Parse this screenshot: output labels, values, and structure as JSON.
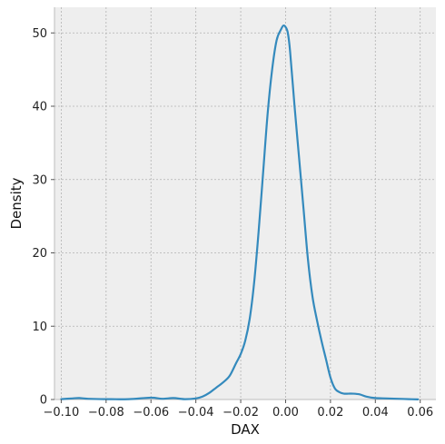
{
  "chart_data": {
    "type": "line",
    "xlabel": "DAX",
    "ylabel": "Density",
    "xlim": [
      -0.103,
      0.067
    ],
    "ylim": [
      0,
      53.5
    ],
    "grid": true,
    "x_ticks": [
      -0.1,
      -0.08,
      -0.06,
      -0.04,
      -0.02,
      0.0,
      0.02,
      0.04,
      0.06
    ],
    "x_tick_labels": [
      "−0.10",
      "−0.08",
      "−0.06",
      "−0.04",
      "−0.02",
      "0.00",
      "0.02",
      "0.04",
      "0.06"
    ],
    "y_ticks": [
      0,
      10,
      20,
      30,
      40,
      50
    ],
    "y_tick_labels": [
      "0",
      "10",
      "20",
      "30",
      "40",
      "50"
    ],
    "colors": {
      "line": "#348abd",
      "plot_bg": "#eeeeee",
      "grid": "#b2b2b2",
      "spine": "#bcbcbc"
    },
    "series": [
      {
        "x": [
          -0.1,
          -0.095,
          -0.092,
          -0.088,
          -0.08,
          -0.07,
          -0.06,
          -0.055,
          -0.05,
          -0.045,
          -0.04,
          -0.037,
          -0.034,
          -0.031,
          -0.028,
          -0.025,
          -0.022,
          -0.02,
          -0.018,
          -0.016,
          -0.014,
          -0.012,
          -0.01,
          -0.008,
          -0.006,
          -0.004,
          -0.002,
          -0.001,
          0.0,
          0.001,
          0.002,
          0.004,
          0.006,
          0.008,
          0.01,
          0.012,
          0.014,
          0.016,
          0.018,
          0.02,
          0.022,
          0.024,
          0.026,
          0.028,
          0.03,
          0.033,
          0.036,
          0.04,
          0.045,
          0.05,
          0.055,
          0.059
        ],
        "y": [
          0.05,
          0.15,
          0.2,
          0.1,
          0.05,
          0.05,
          0.25,
          0.1,
          0.2,
          0.05,
          0.15,
          0.4,
          0.9,
          1.6,
          2.3,
          3.2,
          5.0,
          6.2,
          8.0,
          11.0,
          16.0,
          23.0,
          31.0,
          39.0,
          45.0,
          49.0,
          50.5,
          51.0,
          50.8,
          50.0,
          47.5,
          40.0,
          33.0,
          26.0,
          19.0,
          14.0,
          10.8,
          8.0,
          5.5,
          3.0,
          1.5,
          1.0,
          0.8,
          0.8,
          0.8,
          0.7,
          0.4,
          0.2,
          0.15,
          0.1,
          0.05,
          0.02
        ]
      }
    ]
  }
}
